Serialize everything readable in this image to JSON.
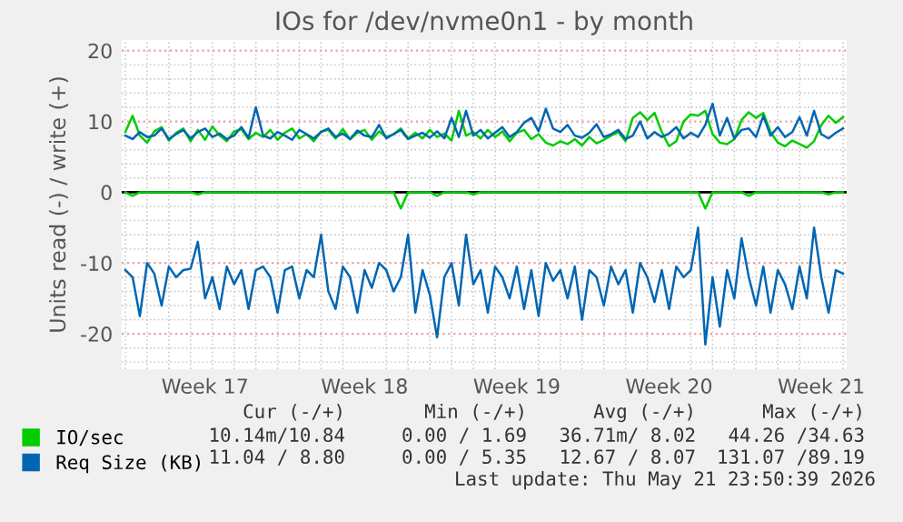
{
  "chart_data": {
    "type": "line",
    "title": "IOs for /dev/nvme0n1 - by month",
    "ylabel": "Units read (-) / write (+)",
    "categories": [
      null,
      null,
      null,
      null,
      null,
      null,
      null,
      null,
      null,
      null,
      null,
      "Week 17",
      null,
      null,
      null,
      null,
      null,
      null,
      null,
      null,
      null,
      null,
      null,
      null,
      null,
      null,
      null,
      null,
      null,
      null,
      null,
      null,
      null,
      "Week 18",
      null,
      null,
      null,
      null,
      null,
      null,
      null,
      null,
      null,
      null,
      null,
      null,
      null,
      null,
      null,
      null,
      null,
      null,
      null,
      null,
      "Week 19",
      null,
      null,
      null,
      null,
      null,
      null,
      null,
      null,
      null,
      null,
      null,
      null,
      null,
      null,
      null,
      null,
      null,
      null,
      null,
      null,
      "Week 20",
      null,
      null,
      null,
      null,
      null,
      null,
      null,
      null,
      null,
      null,
      null,
      null,
      null,
      null,
      null,
      null,
      null,
      null,
      null,
      null,
      "Week 21",
      null,
      null,
      null
    ],
    "series": [
      {
        "name": "IO/sec",
        "color": "#00cc00",
        "values": [
          8.5,
          10.8,
          8,
          7,
          8.6,
          9.2,
          7.3,
          8.4,
          9,
          7.2,
          8.8,
          7.4,
          9.3,
          8,
          7.2,
          8.6,
          8.9,
          7.5,
          8.4,
          7.8,
          8.8,
          7.4,
          8.4,
          9,
          7.6,
          8.2,
          7.2,
          8.6,
          8.8,
          7.6,
          8.9,
          7.5,
          8.4,
          8.8,
          7.4,
          8.6,
          7.8,
          8.2,
          9,
          7.6,
          8.4,
          7.6,
          8.8,
          7.8,
          8.3,
          7.3,
          11.5,
          8,
          8.5,
          7.6,
          8.8,
          7.8,
          8.6,
          7.2,
          8.4,
          8.8,
          7.5,
          8.2,
          7,
          6.6,
          7.2,
          6.8,
          7.5,
          6.6,
          7.8,
          6.9,
          7.4,
          8,
          8.5,
          7.2,
          10.5,
          11.3,
          10.2,
          11.2,
          8.5,
          6.5,
          7.2,
          10,
          11,
          10.8,
          11.5,
          8.2,
          7,
          6.8,
          7.5,
          10.2,
          11.3,
          10.5,
          11.2,
          8.5,
          7,
          6.5,
          7.3,
          6.8,
          6.3,
          7.2,
          9.5,
          10.8,
          9.8,
          10.6
        ]
      },
      {
        "color": "#00cc00",
        "values": [
          0,
          -0.5,
          0,
          0,
          0,
          0,
          0,
          0,
          0,
          0,
          -0.3,
          0,
          0,
          0,
          0,
          0,
          0,
          0,
          0,
          0,
          0,
          0,
          0,
          0,
          0,
          0,
          0,
          0,
          0,
          0,
          0,
          0,
          0,
          0,
          0,
          0,
          0,
          0,
          -2.3,
          0,
          0,
          0,
          0,
          -0.5,
          0,
          0,
          0,
          0,
          -0.3,
          0,
          0,
          0,
          0,
          0,
          0,
          0,
          0,
          0,
          0,
          0,
          0,
          0,
          0,
          0,
          0,
          0,
          0,
          0,
          0,
          0,
          0,
          0,
          0,
          0,
          0,
          0,
          0,
          0,
          0,
          0,
          -2.3,
          0,
          0,
          0,
          0,
          0,
          -0.5,
          0,
          0,
          0,
          0,
          0,
          0,
          0,
          0,
          0,
          0,
          -0.3,
          0,
          0
        ]
      },
      {
        "name": "Req Size (KB)",
        "color": "#0066b3",
        "values": [
          8,
          7.5,
          8.5,
          7.8,
          8,
          9,
          7.5,
          8.2,
          8.8,
          7.6,
          8.5,
          9,
          7.8,
          8.3,
          7.5,
          8,
          9.2,
          7.7,
          12,
          8,
          7.6,
          8.5,
          8,
          7.4,
          8.8,
          8.2,
          7.6,
          8.5,
          9,
          7.8,
          8.3,
          7.5,
          8.7,
          8,
          7.8,
          9.5,
          7.6,
          8.2,
          8.8,
          7.5,
          8,
          8.4,
          7.7,
          8.6,
          7.6,
          10.5,
          7.8,
          11.5,
          8,
          8.8,
          7.6,
          8.4,
          9.2,
          7.8,
          8.5,
          9.8,
          10.5,
          8.6,
          11.8,
          9,
          8.5,
          9.5,
          8,
          7.7,
          8.4,
          9.6,
          7.8,
          8.2,
          8.8,
          7.5,
          8,
          10,
          7.6,
          8.5,
          7.8,
          8.3,
          9.2,
          7.6,
          8.4,
          7.8,
          9.5,
          12.5,
          8,
          10.5,
          7.6,
          8.8,
          9,
          7.8,
          10.8,
          8,
          9.2,
          7.8,
          8.5,
          10.6,
          8,
          11.5,
          8.2,
          7.6,
          8.4,
          9
        ]
      },
      {
        "color": "#0066b3",
        "values": [
          -11,
          -12,
          -17.5,
          -10,
          -11.5,
          -16,
          -10.5,
          -12,
          -11,
          -10.8,
          -7,
          -15,
          -12,
          -16.5,
          -10.5,
          -13,
          -11,
          -16.5,
          -11,
          -10.5,
          -12,
          -17,
          -11,
          -10.5,
          -15,
          -11,
          -12,
          -6,
          -14,
          -16.5,
          -10.5,
          -12,
          -17,
          -11,
          -13.5,
          -10,
          -11,
          -14,
          -12,
          -6,
          -17,
          -11,
          -14.5,
          -20.5,
          -12,
          -10,
          -16,
          -6,
          -13,
          -11,
          -17,
          -10.5,
          -12,
          -15,
          -10.5,
          -16.5,
          -11,
          -17.5,
          -10,
          -12.5,
          -11,
          -15,
          -10.5,
          -18,
          -11,
          -12,
          -16,
          -10.5,
          -13,
          -11,
          -17,
          -10,
          -12,
          -15.5,
          -11,
          -16.5,
          -10.5,
          -12,
          -11,
          -5,
          -21.5,
          -12,
          -19,
          -11,
          -15,
          -6.5,
          -12,
          -16,
          -10.5,
          -17,
          -11,
          -13,
          -16.5,
          -10.5,
          -15,
          -5,
          -12,
          -17,
          -11,
          -11.5
        ]
      }
    ],
    "ylim": [
      -25,
      21.5
    ],
    "yticks": [
      -20,
      -10,
      0,
      10,
      20
    ],
    "ref_lines": [
      {
        "axis": "y",
        "value": 0,
        "color": "#000000"
      }
    ],
    "grid": true,
    "legend": "bottom left",
    "annotations": [
      "Cur (-/+)",
      "Min (-/+)",
      "Avg (-/+)",
      "Max (-/+)",
      "10.14m/10.84",
      "0.00 / 1.69",
      "36.71m/ 8.02",
      "44.26 /34.63",
      "11.04 / 8.80",
      "0.00 / 5.35",
      "12.67 / 8.07",
      "131.07 /89.19",
      "Last update: Thu May 21 23:50:39 2026"
    ]
  }
}
